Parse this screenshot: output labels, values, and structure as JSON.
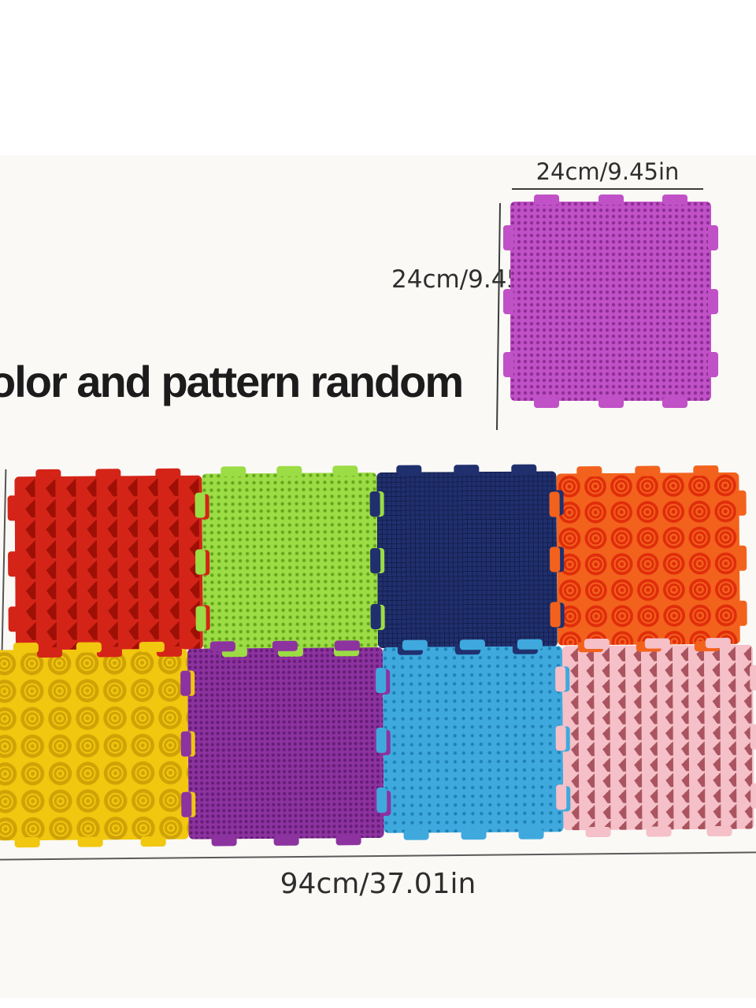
{
  "page": {
    "background": "#ffffff",
    "photo_background": "#faf9f6",
    "dimension_line_color": "#3c3c3c"
  },
  "headline": {
    "text": "olor and pattern random"
  },
  "single_mat": {
    "name": "magenta-sample-mat",
    "width_label": "24cm/9.45in",
    "height_label": "24cm/9.45in",
    "base": "#c151c7",
    "accent": "#8c2d94",
    "texture": "dot",
    "size": 8
  },
  "assembled_mat": {
    "total_width_label": "94cm/37.01in",
    "rows": 2,
    "cols": 4,
    "mats": [
      {
        "name": "red-spike-mat",
        "base": "#d42418",
        "accent": "#9e1005",
        "texture": "spike",
        "size": 26
      },
      {
        "name": "green-dot-mat",
        "base": "#9cdc45",
        "accent": "#63a51c",
        "texture": "dot",
        "size": 9
      },
      {
        "name": "navy-grid-mat",
        "base": "#20306e",
        "accent": "#141f4e",
        "texture": "grid",
        "size": 6
      },
      {
        "name": "orange-rose-mat",
        "base": "#f3621d",
        "accent": "#e02d0b",
        "texture": "rose",
        "size": 33
      },
      {
        "name": "yellow-rose-mat",
        "base": "#f1c70f",
        "accent": "#cfa206",
        "texture": "rose",
        "size": 35
      },
      {
        "name": "purple-dot-mat",
        "base": "#8d33a0",
        "accent": "#671d78",
        "texture": "dot",
        "size": 7
      },
      {
        "name": "blue-dot-mat",
        "base": "#3fa9de",
        "accent": "#1e80b5",
        "texture": "dot",
        "size": 11
      },
      {
        "name": "pink-spike-mat",
        "base": "#f5c0c8",
        "accent": "#a9545f",
        "texture": "spike",
        "size": 20
      }
    ]
  }
}
